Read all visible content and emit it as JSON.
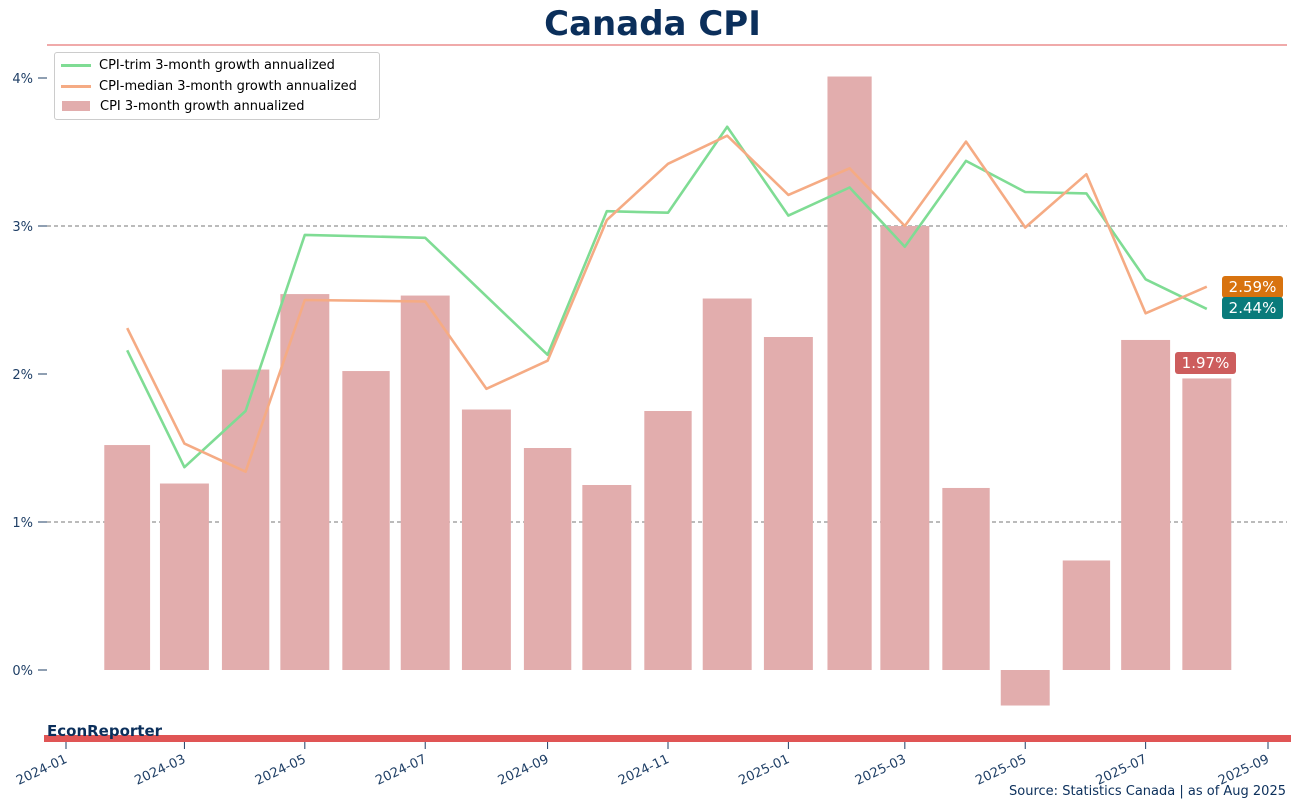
{
  "title": "Canada CPI",
  "brand": "EconReporter",
  "source": "Source: Statistics Canada | as of Aug 2025",
  "colors": {
    "title": "#0b2f5b",
    "accent_red": "#e05555",
    "bar": "#e2adad",
    "trim": "#7fdc94",
    "median": "#f5ab84",
    "label_trim": "#0a7b7b",
    "label_median": "#d8730f",
    "label_cpi": "#cd5d5d",
    "grid": "#777777",
    "axis_text": "#1f3f66"
  },
  "chart_data": {
    "type": "bar",
    "title": "Canada CPI",
    "y_unit": "%",
    "ylim": [
      -0.5,
      4.2
    ],
    "yticks": [
      0,
      1,
      2,
      3,
      4
    ],
    "ytick_labels": [
      "0%",
      "1%",
      "2%",
      "3%",
      "4%"
    ],
    "grid_lines": [
      1,
      3
    ],
    "xlim": [
      "2023-12-22",
      "2025-09-05"
    ],
    "xticks": [
      "2024-01-01",
      "2024-03-01",
      "2024-05-01",
      "2024-07-01",
      "2024-09-01",
      "2024-11-01",
      "2025-01-01",
      "2025-03-01",
      "2025-05-01",
      "2025-07-01",
      "2025-09-01"
    ],
    "xtick_labels": [
      "2024-01",
      "2024-03",
      "2024-05",
      "2024-07",
      "2024-09",
      "2024-11",
      "2025-01",
      "2025-03",
      "2025-05",
      "2025-07",
      "2025-09"
    ],
    "legend_position": "top-left",
    "x": [
      "2024-02-01",
      "2024-03-01",
      "2024-04-01",
      "2024-05-01",
      "2024-06-01",
      "2024-07-01",
      "2024-08-01",
      "2024-09-01",
      "2024-10-01",
      "2024-11-01",
      "2024-12-01",
      "2025-01-01",
      "2025-02-01",
      "2025-03-01",
      "2025-04-01",
      "2025-05-01",
      "2025-06-01",
      "2025-07-01",
      "2025-08-01"
    ],
    "series": [
      {
        "name": "CPI 3-month growth annualized",
        "kind": "bar",
        "values": [
          1.52,
          1.26,
          2.03,
          2.54,
          2.02,
          2.53,
          1.76,
          1.5,
          1.25,
          1.75,
          2.51,
          2.25,
          4.01,
          3.0,
          1.23,
          -0.24,
          0.74,
          2.23,
          1.97
        ]
      },
      {
        "name": "CPI-trim 3-month growth annualized",
        "kind": "line",
        "values": [
          2.16,
          1.37,
          1.75,
          2.94,
          null,
          2.92,
          null,
          2.13,
          3.1,
          3.09,
          3.67,
          3.07,
          3.26,
          2.86,
          3.44,
          3.23,
          3.22,
          2.64,
          2.44
        ]
      },
      {
        "name": "CPI-median 3-month growth annualized",
        "kind": "line",
        "values": [
          2.31,
          1.53,
          1.34,
          2.5,
          null,
          2.49,
          1.9,
          2.09,
          3.04,
          3.42,
          3.61,
          3.21,
          3.39,
          3.0,
          3.57,
          2.99,
          3.35,
          2.41,
          2.59
        ]
      }
    ],
    "end_labels": [
      {
        "series": "CPI-median 3-month growth annualized",
        "text": "2.59%",
        "value": 2.59
      },
      {
        "series": "CPI-trim 3-month growth annualized",
        "text": "2.44%",
        "value": 2.44
      },
      {
        "series": "CPI 3-month growth annualized",
        "text": "1.97%",
        "value": 1.97
      }
    ]
  }
}
